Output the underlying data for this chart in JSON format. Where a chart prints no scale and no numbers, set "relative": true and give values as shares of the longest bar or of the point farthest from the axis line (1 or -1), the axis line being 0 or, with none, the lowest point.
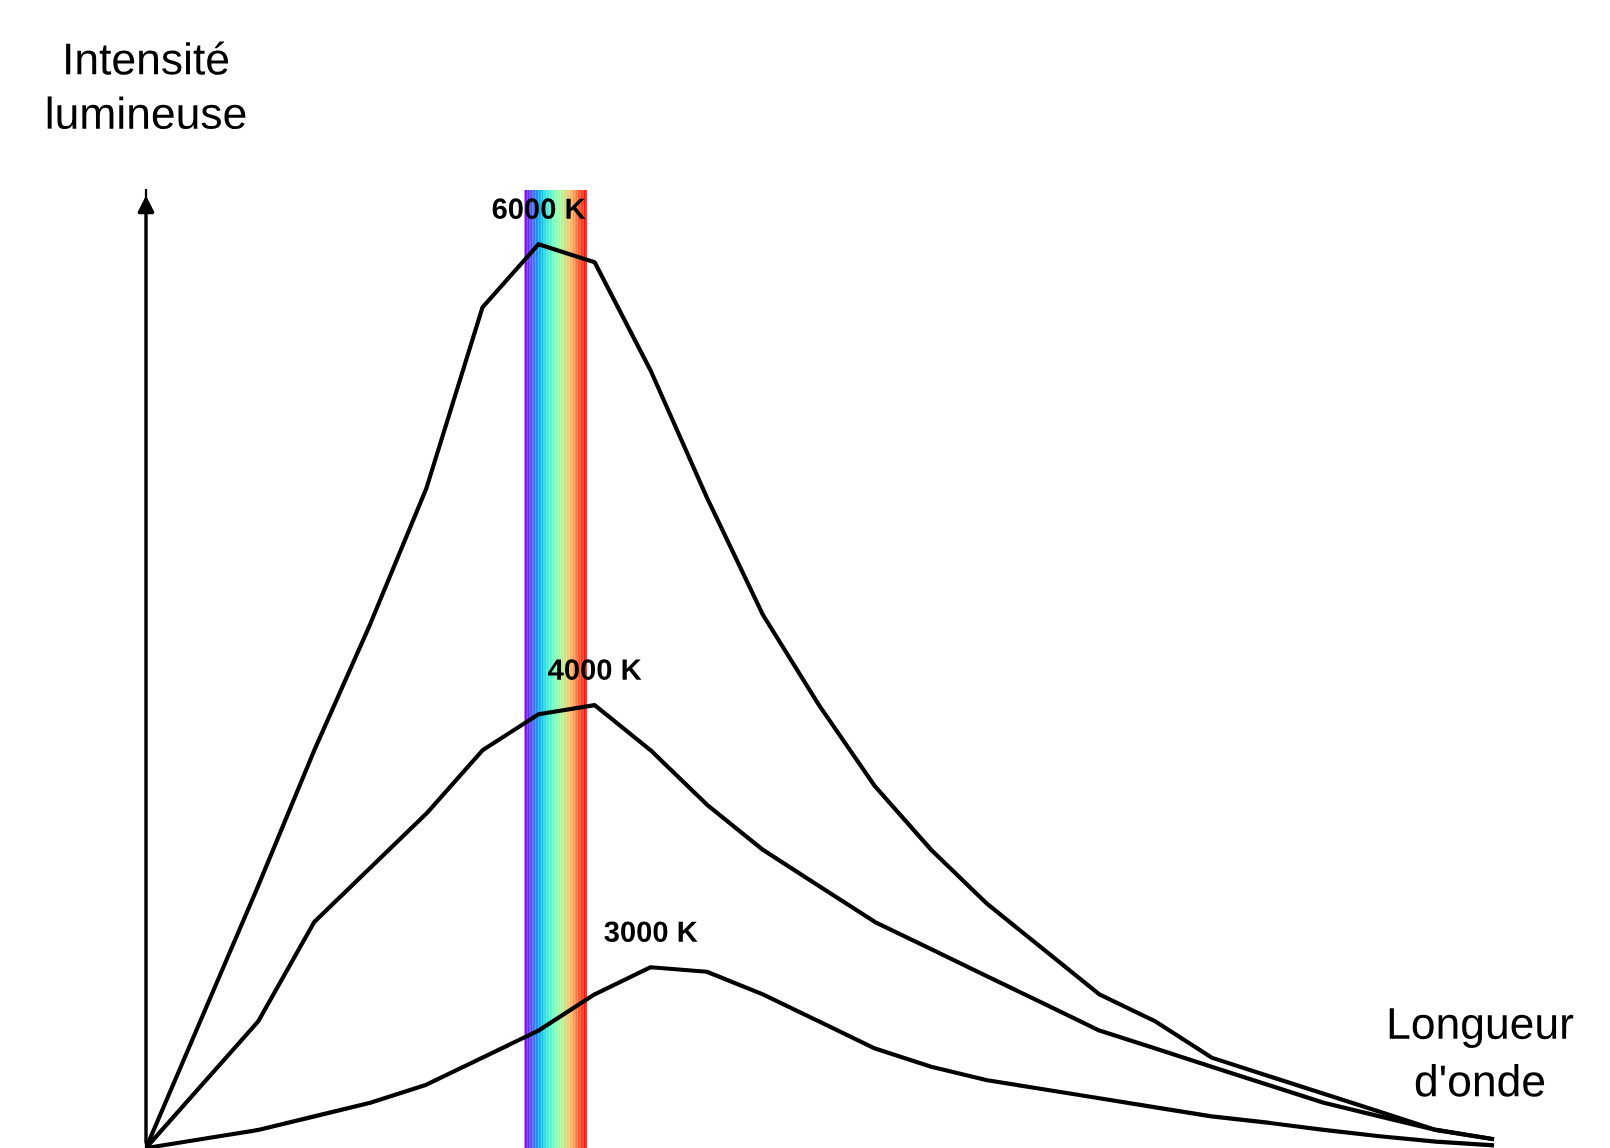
{
  "chart_data": {
    "type": "line",
    "relative": true,
    "ylabel": "Intensité lumineuse",
    "xlabel": "Longueur d'onde",
    "categories": [
      null,
      null,
      null,
      null,
      null,
      null,
      null,
      null,
      null,
      null,
      null,
      null,
      null,
      null,
      null,
      null,
      null,
      null,
      null,
      null,
      null,
      null,
      null,
      null,
      null
    ],
    "marker": "none",
    "line_style": "solid",
    "legend": false,
    "series": [
      {
        "name": "6000 K",
        "color": "#000000",
        "values": [
          0,
          0.145,
          0.29,
          0.44,
          0.58,
          0.73,
          0.93,
          1.0,
          0.98,
          0.86,
          0.72,
          0.59,
          0.49,
          0.4,
          0.33,
          0.27,
          0.22,
          0.17,
          0.14,
          0.1,
          0.08,
          0.06,
          0.04,
          0.02,
          0.01
        ]
      },
      {
        "name": "4000 K",
        "color": "#000000",
        "values": [
          0,
          0.07,
          0.14,
          0.25,
          0.31,
          0.37,
          0.44,
          0.48,
          0.49,
          0.44,
          0.38,
          0.33,
          0.29,
          0.25,
          0.22,
          0.19,
          0.16,
          0.13,
          0.11,
          0.09,
          0.07,
          0.05,
          0.035,
          0.02,
          0.01
        ]
      },
      {
        "name": "3000 K",
        "color": "#000000",
        "values": [
          0,
          0.01,
          0.02,
          0.035,
          0.05,
          0.07,
          0.1,
          0.13,
          0.17,
          0.2,
          0.195,
          0.17,
          0.14,
          0.11,
          0.09,
          0.075,
          0.065,
          0.055,
          0.045,
          0.035,
          0.028,
          0.02,
          0.013,
          0.007,
          0.003
        ]
      }
    ]
  }
}
